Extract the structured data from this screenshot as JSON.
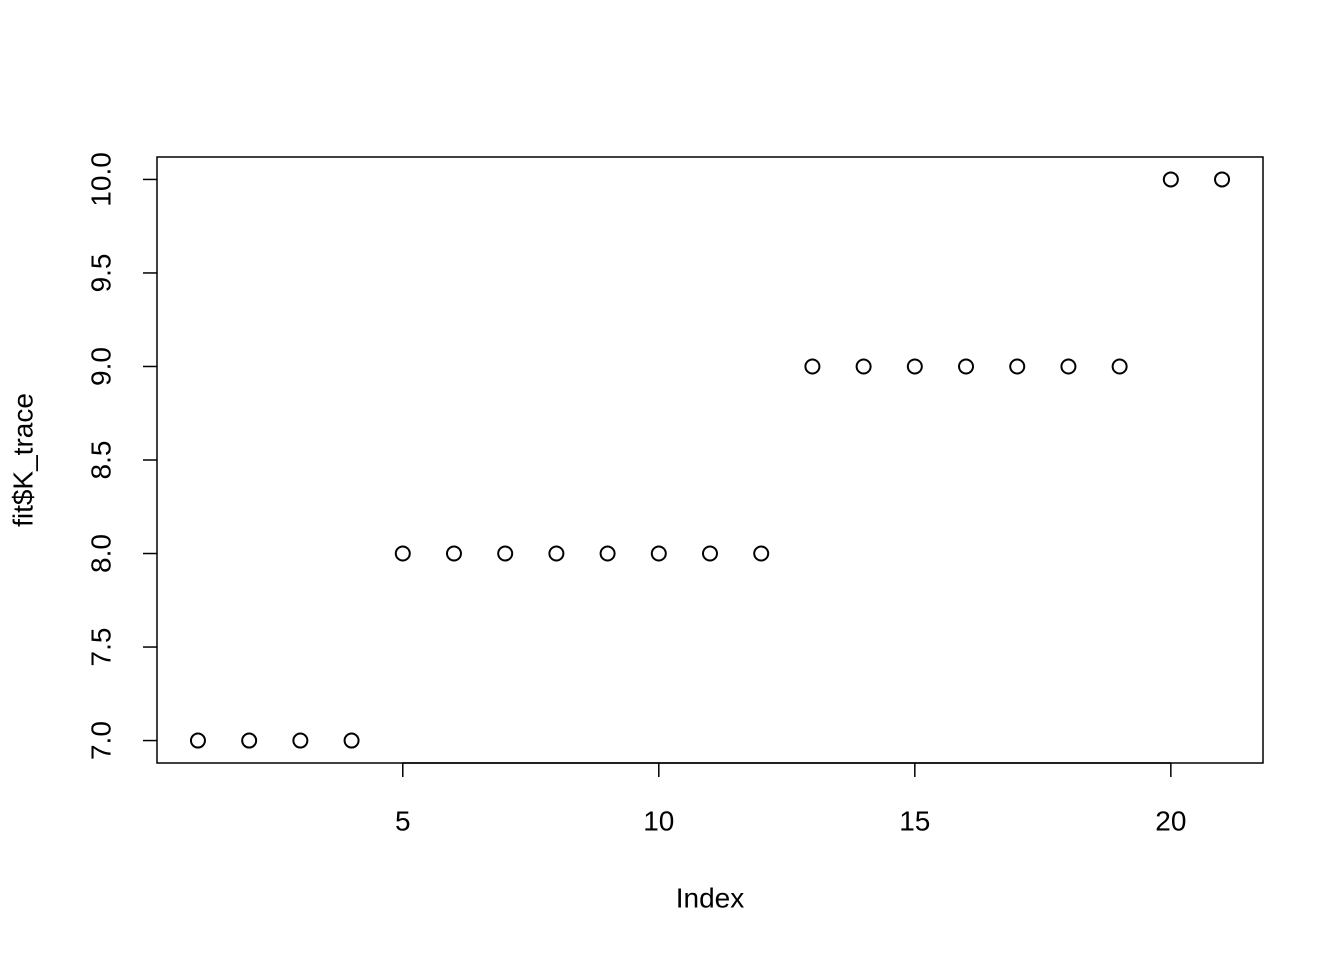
{
  "chart_data": {
    "type": "scatter",
    "x_label": "Index",
    "y_label": "fit$K_trace",
    "x": [
      1,
      2,
      3,
      4,
      5,
      6,
      7,
      8,
      9,
      10,
      11,
      12,
      13,
      14,
      15,
      16,
      17,
      18,
      19,
      20,
      21
    ],
    "values": [
      7,
      7,
      7,
      7,
      8,
      8,
      8,
      8,
      8,
      8,
      8,
      8,
      9,
      9,
      9,
      9,
      9,
      9,
      9,
      10,
      10
    ],
    "color": "#000000",
    "xlim": [
      0.2,
      21.8
    ],
    "xticks": [
      5,
      10,
      15,
      20
    ],
    "ylim": [
      6.88,
      10.12
    ],
    "yticks": [
      {
        "value": 7,
        "label": "7.0"
      },
      7.5,
      {
        "value": 8,
        "label": "8.0"
      },
      8.5,
      {
        "value": 9,
        "label": "9.0"
      },
      9.5,
      {
        "value": 10,
        "label": "10.0"
      }
    ]
  }
}
